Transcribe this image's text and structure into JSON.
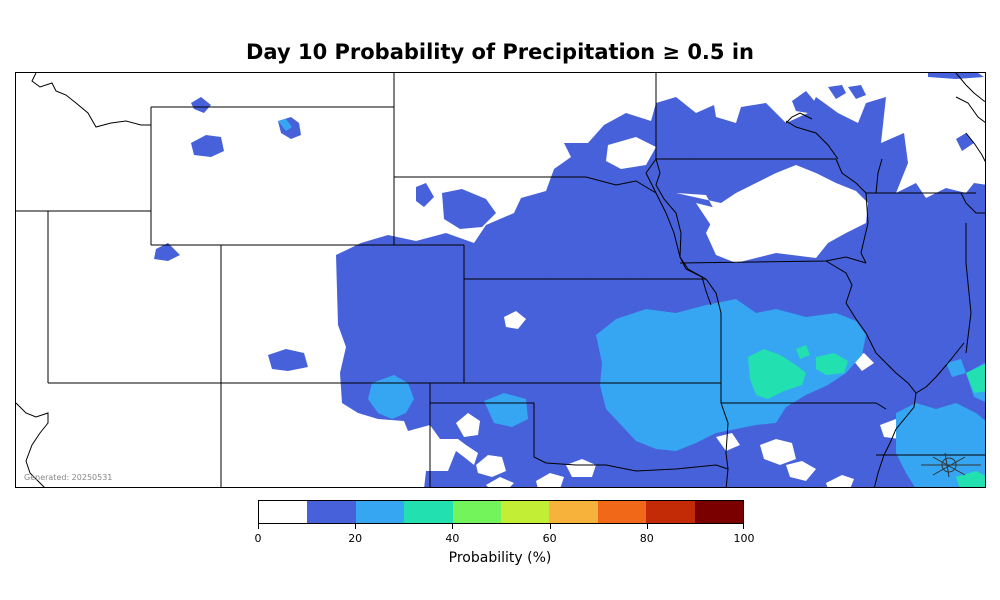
{
  "title": "Day 10 Probability of Precipitation ≥ 0.5 in",
  "generated_stamp": "Generated: 20250531",
  "colorbar": {
    "label": "Probability (%)",
    "bins": [
      {
        "from": 0,
        "to": 10,
        "color": "#ffffff"
      },
      {
        "from": 10,
        "to": 20,
        "color": "#4661d9"
      },
      {
        "from": 20,
        "to": 30,
        "color": "#36a6f2"
      },
      {
        "from": 30,
        "to": 40,
        "color": "#22e0b0"
      },
      {
        "from": 40,
        "to": 50,
        "color": "#72f45a"
      },
      {
        "from": 50,
        "to": 60,
        "color": "#c2ee36"
      },
      {
        "from": 60,
        "to": 70,
        "color": "#f7b23c"
      },
      {
        "from": 70,
        "to": 80,
        "color": "#f06818"
      },
      {
        "from": 80,
        "to": 90,
        "color": "#c32a06"
      },
      {
        "from": 90,
        "to": 100,
        "color": "#7a0000"
      }
    ],
    "tick_labels": [
      "0",
      "20",
      "40",
      "60",
      "80",
      "100"
    ]
  },
  "colors": {
    "p10_20": "#4661d9",
    "p20_30": "#36a6f2",
    "p30_40": "#22e0b0",
    "boundary": "#000000"
  }
}
